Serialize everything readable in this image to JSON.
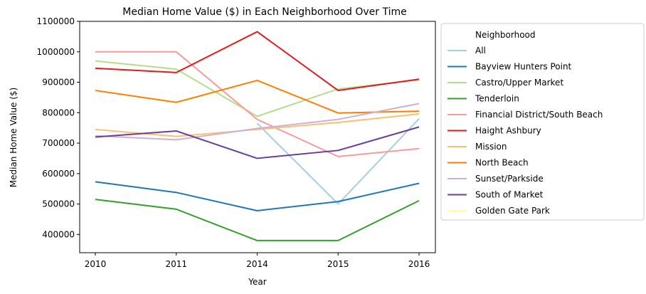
{
  "chart_data": {
    "type": "line",
    "title": "Median Home Value ($) in Each Neighborhood Over Time",
    "xlabel": "Year",
    "ylabel": "Median Home Value ($)",
    "categories": [
      "2010",
      "2011",
      "2014",
      "2015",
      "2016"
    ],
    "ylim": [
      340000,
      1100000
    ],
    "yticks": [
      400000,
      500000,
      600000,
      700000,
      800000,
      900000,
      1000000,
      1100000
    ],
    "yticklabels": [
      "400000",
      "500000",
      "600000",
      "700000",
      "800000",
      "900000",
      "1000000",
      "1100000"
    ],
    "grid": false,
    "legend_title": "Neighborhood",
    "legend_position": "right, outside plot",
    "series": [
      {
        "name": "All",
        "color": "#a6cee3",
        "values": [
          null,
          null,
          765000,
          500000,
          780000
        ]
      },
      {
        "name": "Bayview Hunters Point",
        "color": "#1f78b4",
        "values": [
          573000,
          538000,
          478000,
          508000,
          568000
        ]
      },
      {
        "name": "Castro/Upper Market",
        "color": "#b2df8a",
        "values": [
          970000,
          943000,
          788000,
          878000,
          908000
        ]
      },
      {
        "name": "Tenderloin",
        "color": "#33a02c",
        "values": [
          515000,
          483000,
          380000,
          380000,
          511000
        ]
      },
      {
        "name": "Financial District/South Beach",
        "color": "#fb9a99",
        "values": [
          1000000,
          1000000,
          778000,
          656000,
          682000
        ]
      },
      {
        "name": "Haight Ashbury",
        "color": "#e31a1c",
        "values": [
          946000,
          932000,
          1066000,
          873000,
          910000
        ]
      },
      {
        "name": "Mission",
        "color": "#fdbf6f",
        "values": [
          745000,
          722000,
          745000,
          768000,
          796000
        ]
      },
      {
        "name": "North Beach",
        "color": "#ff7f00",
        "values": [
          873000,
          834000,
          906000,
          799000,
          805000
        ]
      },
      {
        "name": "Sunset/Parkside",
        "color": "#cab2d6",
        "values": [
          724000,
          711000,
          748000,
          778000,
          830000
        ]
      },
      {
        "name": "South of Market",
        "color": "#6a3d9a",
        "values": [
          720000,
          740000,
          650000,
          676000,
          753000
        ]
      },
      {
        "name": "Golden Gate Park",
        "color": "#ffff99",
        "values": [
          null,
          null,
          null,
          null,
          null
        ]
      }
    ]
  }
}
